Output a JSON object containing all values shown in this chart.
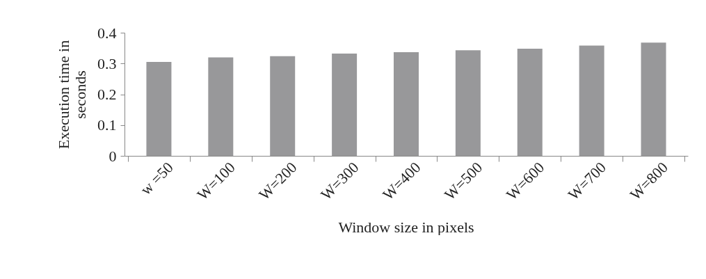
{
  "chart_data": {
    "type": "bar",
    "xlabel": "Window size in pixels",
    "ylabel": "Execution time in seconds",
    "categories": [
      "w =50",
      "W=100",
      "W=200",
      "W=300",
      "W=400",
      "W=500",
      "W=600",
      "W=700",
      "W=800"
    ],
    "values": [
      0.305,
      0.32,
      0.324,
      0.332,
      0.337,
      0.343,
      0.348,
      0.358,
      0.368
    ],
    "color": "#98989a",
    "ylim": [
      0,
      0.4
    ],
    "yticks": [
      0,
      0.1,
      0.2,
      0.3,
      0.4
    ],
    "grid": false
  }
}
